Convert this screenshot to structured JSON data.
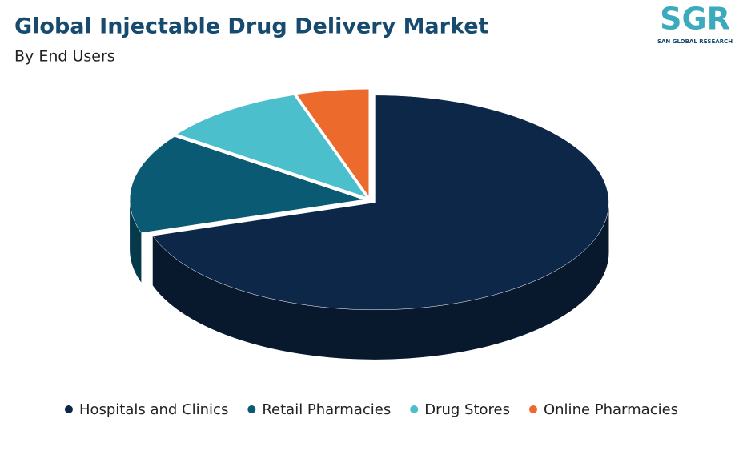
{
  "chart_data": {
    "type": "pie",
    "title": "Global Injectable Drug Delivery Market",
    "subtitle": "By End Users",
    "categories": [
      "Hospitals and Clinics",
      "Retail Pharmacies",
      "Drug Stores",
      "Online Pharmacies"
    ],
    "values": [
      70,
      15,
      10,
      5
    ],
    "colors": [
      "#0d2748",
      "#0a5a74",
      "#4bbfcb",
      "#ec6a2c"
    ],
    "legend": "bottom"
  },
  "logo": {
    "text": "SGR",
    "tagline": "SAN GLOBAL RESEARCH"
  }
}
